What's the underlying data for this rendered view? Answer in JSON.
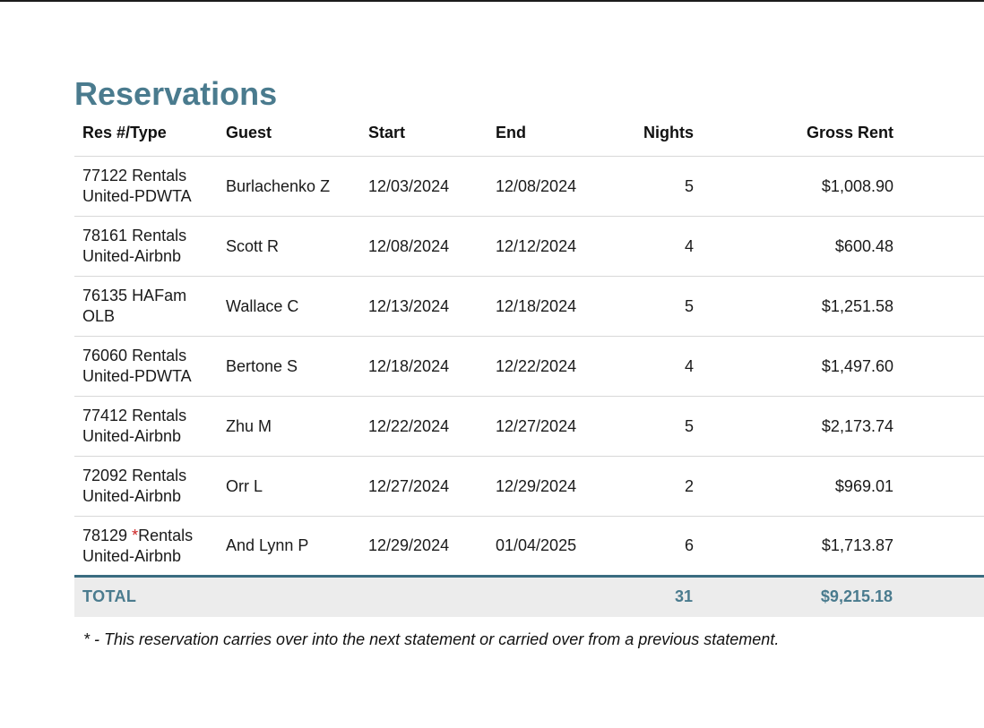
{
  "page": {
    "title": "Reservations",
    "footnote": "* - This reservation carries over into the next statement or carried over from a previous statement."
  },
  "colors": {
    "accent": "#4a7b8e",
    "total_border": "#3a6c80",
    "total_bg": "#ececec",
    "carryover_red": "#cc2222"
  },
  "table": {
    "columns": [
      "Res #/Type",
      "Guest",
      "Start",
      "End",
      "Nights",
      "Gross Rent"
    ],
    "carryover_marker": "*",
    "rows": [
      {
        "res_number": "77122",
        "res_type": "Rentals United-PDWTA",
        "carryover": false,
        "guest": "Burlachenko Z",
        "start": "12/03/2024",
        "end": "12/08/2024",
        "nights": "5",
        "gross_rent": "$1,008.90"
      },
      {
        "res_number": "78161",
        "res_type": "Rentals United-Airbnb",
        "carryover": false,
        "guest": "Scott R",
        "start": "12/08/2024",
        "end": "12/12/2024",
        "nights": "4",
        "gross_rent": "$600.48"
      },
      {
        "res_number": "76135",
        "res_type": "HAFam OLB",
        "carryover": false,
        "guest": "Wallace C",
        "start": "12/13/2024",
        "end": "12/18/2024",
        "nights": "5",
        "gross_rent": "$1,251.58"
      },
      {
        "res_number": "76060",
        "res_type": "Rentals United-PDWTA",
        "carryover": false,
        "guest": "Bertone S",
        "start": "12/18/2024",
        "end": "12/22/2024",
        "nights": "4",
        "gross_rent": "$1,497.60"
      },
      {
        "res_number": "77412",
        "res_type": "Rentals United-Airbnb",
        "carryover": false,
        "guest": "Zhu M",
        "start": "12/22/2024",
        "end": "12/27/2024",
        "nights": "5",
        "gross_rent": "$2,173.74"
      },
      {
        "res_number": "72092",
        "res_type": "Rentals United-Airbnb",
        "carryover": false,
        "guest": "Orr L",
        "start": "12/27/2024",
        "end": "12/29/2024",
        "nights": "2",
        "gross_rent": "$969.01"
      },
      {
        "res_number": "78129",
        "res_type": "Rentals United-Airbnb",
        "carryover": true,
        "guest": "And Lynn P",
        "start": "12/29/2024",
        "end": "01/04/2025",
        "nights": "6",
        "gross_rent": "$1,713.87"
      }
    ],
    "total": {
      "label": "TOTAL",
      "nights": "31",
      "gross_rent": "$9,215.18"
    }
  }
}
